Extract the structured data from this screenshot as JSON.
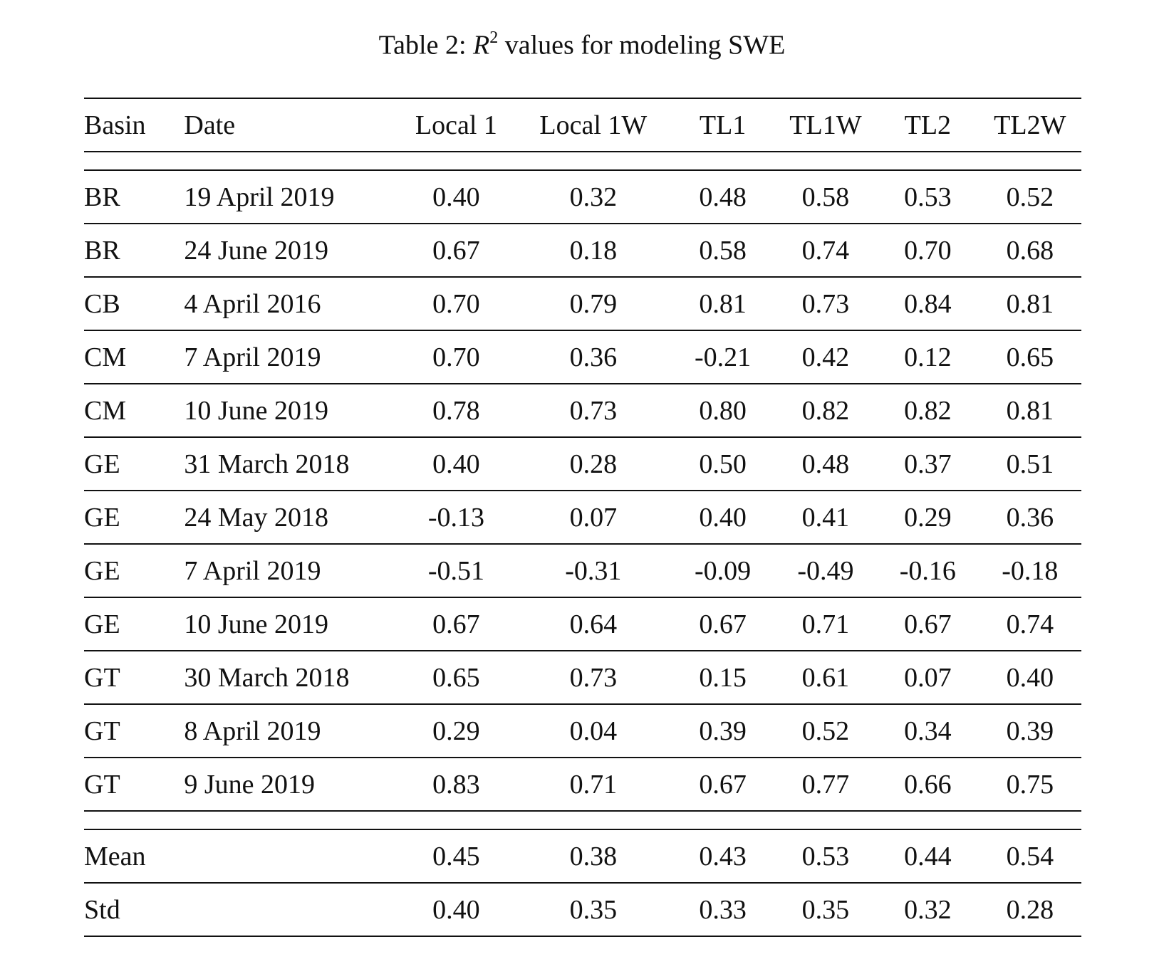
{
  "caption": {
    "prefix": "Table 2: ",
    "var": "R",
    "sup": "2",
    "suffix": " values for modeling SWE"
  },
  "headers": [
    "Basin",
    "Date",
    "Local 1",
    "Local 1W",
    "TL1",
    "TL1W",
    "TL2",
    "TL2W"
  ],
  "rows": [
    {
      "basin": "BR",
      "date": "19 April 2019",
      "values": [
        "0.40",
        "0.32",
        "0.48",
        "0.58",
        "0.53",
        "0.52"
      ]
    },
    {
      "basin": "BR",
      "date": "24 June 2019",
      "values": [
        "0.67",
        "0.18",
        "0.58",
        "0.74",
        "0.70",
        "0.68"
      ]
    },
    {
      "basin": "CB",
      "date": "4 April 2016",
      "values": [
        "0.70",
        "0.79",
        "0.81",
        "0.73",
        "0.84",
        "0.81"
      ]
    },
    {
      "basin": "CM",
      "date": "7 April 2019",
      "values": [
        "0.70",
        "0.36",
        "-0.21",
        "0.42",
        "0.12",
        "0.65"
      ]
    },
    {
      "basin": "CM",
      "date": "10 June 2019",
      "values": [
        "0.78",
        "0.73",
        "0.80",
        "0.82",
        "0.82",
        "0.81"
      ]
    },
    {
      "basin": "GE",
      "date": "31 March 2018",
      "values": [
        "0.40",
        "0.28",
        "0.50",
        "0.48",
        "0.37",
        "0.51"
      ]
    },
    {
      "basin": "GE",
      "date": "24 May 2018",
      "values": [
        "-0.13",
        "0.07",
        "0.40",
        "0.41",
        "0.29",
        "0.36"
      ]
    },
    {
      "basin": "GE",
      "date": "7 April 2019",
      "values": [
        "-0.51",
        "-0.31",
        "-0.09",
        "-0.49",
        "-0.16",
        "-0.18"
      ]
    },
    {
      "basin": "GE",
      "date": "10 June 2019",
      "values": [
        "0.67",
        "0.64",
        "0.67",
        "0.71",
        "0.67",
        "0.74"
      ]
    },
    {
      "basin": "GT",
      "date": "30 March 2018",
      "values": [
        "0.65",
        "0.73",
        "0.15",
        "0.61",
        "0.07",
        "0.40"
      ]
    },
    {
      "basin": "GT",
      "date": "8 April 2019",
      "values": [
        "0.29",
        "0.04",
        "0.39",
        "0.52",
        "0.34",
        "0.39"
      ]
    },
    {
      "basin": "GT",
      "date": "9 June 2019",
      "values": [
        "0.83",
        "0.71",
        "0.67",
        "0.77",
        "0.66",
        "0.75"
      ]
    }
  ],
  "summary": [
    {
      "label": "Mean",
      "values": [
        "0.45",
        "0.38",
        "0.43",
        "0.53",
        "0.44",
        "0.54"
      ]
    },
    {
      "label": "Std",
      "values": [
        "0.40",
        "0.35",
        "0.33",
        "0.35",
        "0.32",
        "0.28"
      ]
    }
  ]
}
